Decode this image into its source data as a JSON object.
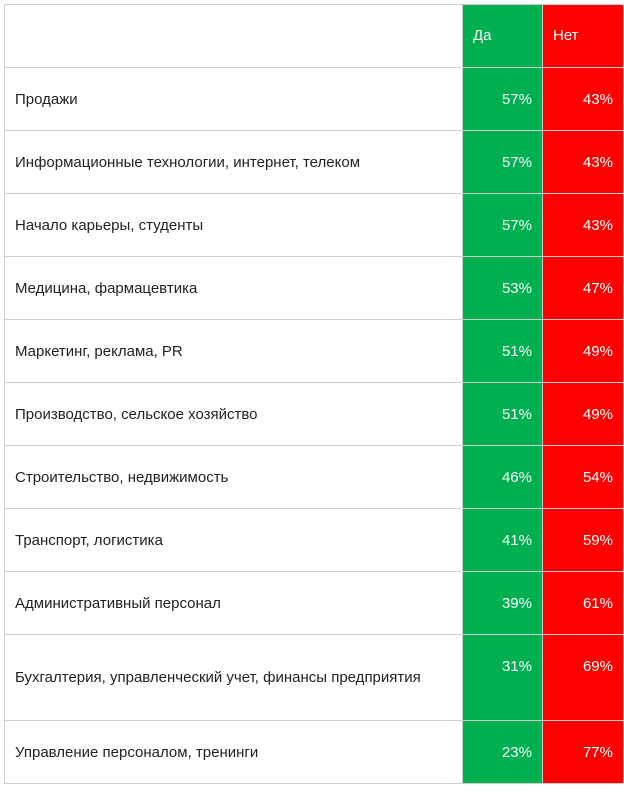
{
  "colors": {
    "yes": "#00b050",
    "no": "#ff0000",
    "border": "#cccccc"
  },
  "chart_data": {
    "type": "table",
    "columns": [
      "",
      "Да",
      "Нет"
    ],
    "categories": [
      "Продажи",
      "Информационные технологии, интернет, телеком",
      "Начало карьеры, студенты",
      "Медицина, фармацевтика",
      "Маркетинг, реклама, PR",
      "Производство, сельское хозяйство",
      "Строительство, недвижимость",
      "Транспорт, логистика",
      "Административный персонал",
      "Бухгалтерия, управленческий учет, финансы предприятия",
      "Управление персоналом, тренинги"
    ],
    "series": [
      {
        "name": "Да",
        "values": [
          57,
          57,
          57,
          53,
          51,
          51,
          46,
          41,
          39,
          31,
          23
        ]
      },
      {
        "name": "Нет",
        "values": [
          43,
          43,
          43,
          47,
          49,
          49,
          54,
          59,
          61,
          69,
          77
        ]
      }
    ],
    "unit": "%"
  }
}
